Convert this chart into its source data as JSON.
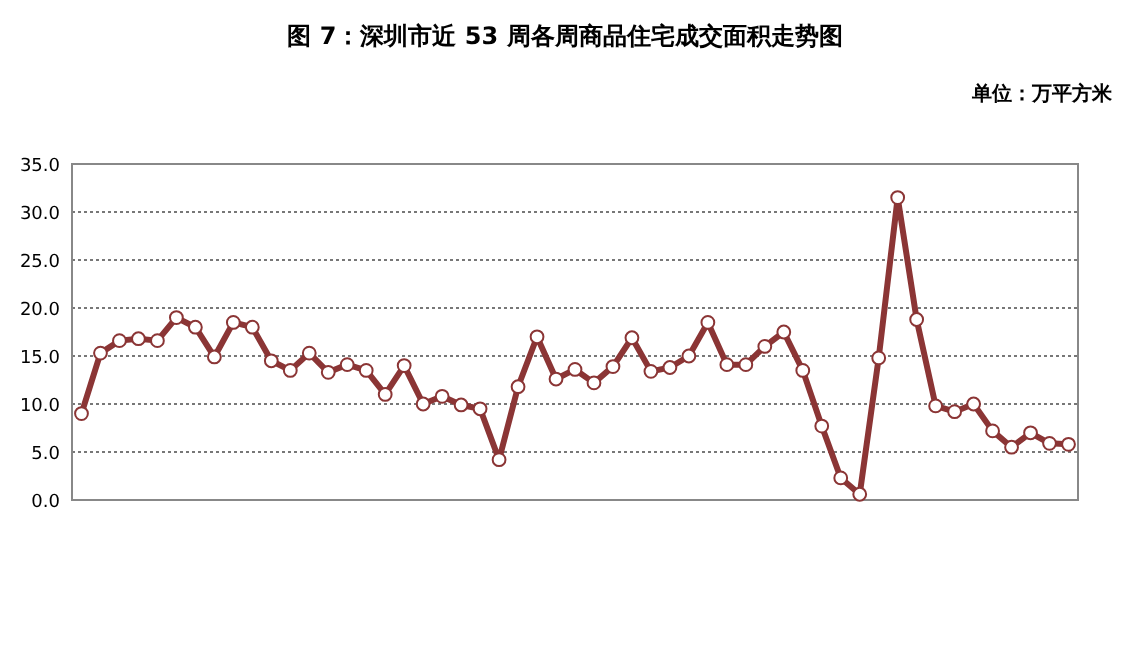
{
  "chart_data": {
    "type": "line",
    "title": "图 7：深圳市近 53 周各周商品住宅成交面积走势图",
    "ylabel": "单位：万平方米",
    "categories": [
      null,
      null,
      null,
      null,
      null,
      null,
      null,
      null,
      null,
      null,
      null,
      null,
      null,
      null,
      null,
      null,
      null,
      null,
      null,
      null,
      null,
      null,
      null,
      null,
      null,
      null,
      null,
      null,
      null,
      null,
      null,
      null,
      null,
      null,
      null,
      null,
      null,
      null,
      null,
      null,
      null,
      null,
      null,
      null,
      null,
      null,
      null,
      null,
      null,
      null,
      null,
      null,
      null
    ],
    "series": [
      {
        "color": "#8b3535",
        "values": [
          9.0,
          15.3,
          16.6,
          16.8,
          16.6,
          19.0,
          18.0,
          14.9,
          18.5,
          18.0,
          14.5,
          13.5,
          15.3,
          13.3,
          14.1,
          13.5,
          11.0,
          14.0,
          10.0,
          10.8,
          9.9,
          9.5,
          4.2,
          11.8,
          17.0,
          12.6,
          13.6,
          12.2,
          13.9,
          16.9,
          13.4,
          13.8,
          15.0,
          18.5,
          14.1,
          14.1,
          16.0,
          17.5,
          13.5,
          7.7,
          2.3,
          0.6,
          14.8,
          31.5,
          18.8,
          9.8,
          9.2,
          10.0,
          7.2,
          5.5,
          7.0,
          5.9,
          5.8
        ]
      }
    ],
    "ylim": [
      0,
      35
    ],
    "yticks": [
      {
        "value": 0,
        "label": "0.0"
      },
      {
        "value": 5,
        "label": "5.0"
      },
      {
        "value": 10,
        "label": "10.0"
      },
      {
        "value": 15,
        "label": "15.0"
      },
      {
        "value": 20,
        "label": "20.0"
      },
      {
        "value": 25,
        "label": "25.0"
      },
      {
        "value": 30,
        "label": "30.0"
      },
      {
        "value": 35,
        "label": "35.0"
      }
    ],
    "grid": "y",
    "marker": "circle",
    "line_style": "solid",
    "tick_labels": "y"
  }
}
